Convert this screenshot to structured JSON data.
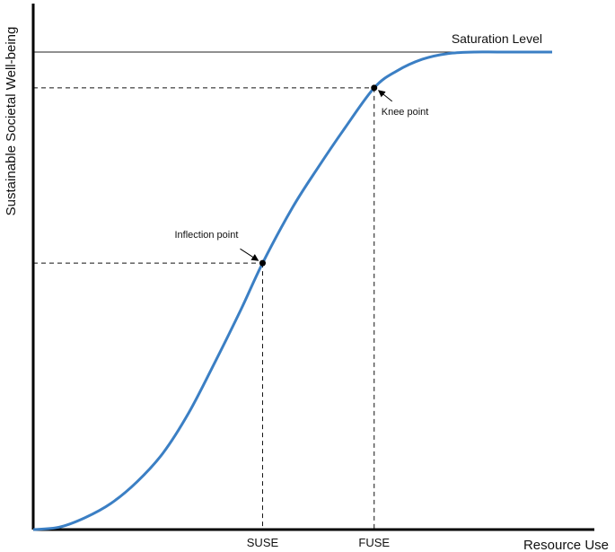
{
  "chart_data": {
    "type": "line",
    "xlabel": "Resource Use",
    "ylabel": "Sustainable Societal Well-being",
    "xlim": [
      0,
      1
    ],
    "ylim": [
      0,
      1
    ],
    "saturation_label": "Saturation Level",
    "saturation_value": 1.0,
    "x_ticks": [
      {
        "label": "SUSE",
        "value": 0.442
      },
      {
        "label": "FUSE",
        "value": 0.657
      }
    ],
    "points": [
      {
        "name": "Inflection point",
        "x": 0.442,
        "y": 0.558
      },
      {
        "name": "Knee point",
        "x": 0.657,
        "y": 0.925
      }
    ],
    "series": [
      {
        "color": "#3b7fc4",
        "x": [
          0.0,
          0.05,
          0.1,
          0.15,
          0.2,
          0.25,
          0.3,
          0.35,
          0.4,
          0.442,
          0.5,
          0.55,
          0.6,
          0.657,
          0.7,
          0.75,
          0.8,
          0.85,
          0.9,
          1.0
        ],
        "y": [
          0.0,
          0.005,
          0.025,
          0.055,
          0.1,
          0.16,
          0.245,
          0.35,
          0.46,
          0.558,
          0.675,
          0.76,
          0.84,
          0.925,
          0.96,
          0.985,
          0.997,
          1.0,
          1.0,
          1.0
        ]
      }
    ]
  }
}
